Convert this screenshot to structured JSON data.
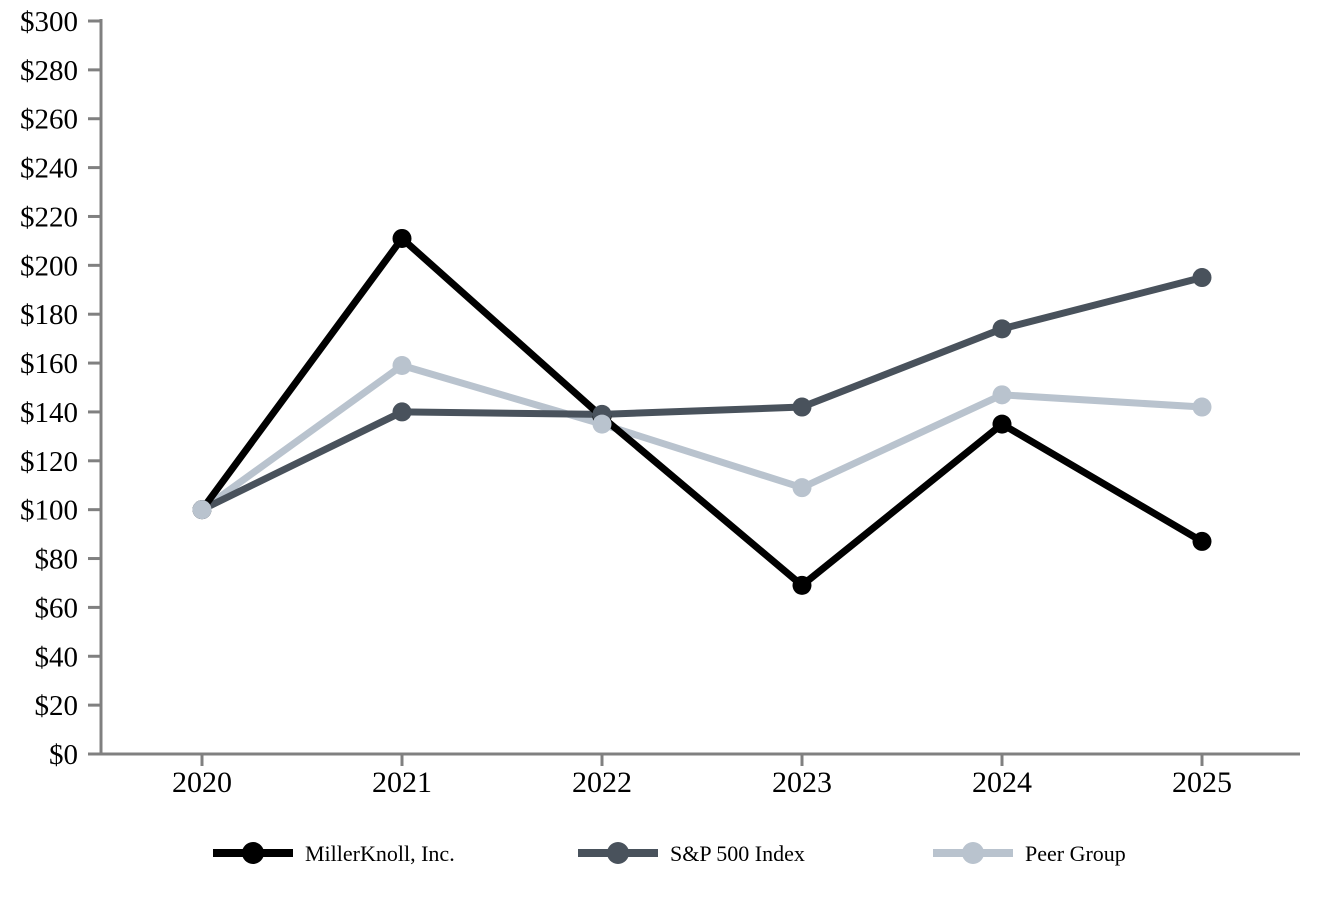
{
  "page": {
    "background_color": "#ffffff"
  },
  "chart_data": {
    "type": "line",
    "title": "",
    "xlabel": "",
    "ylabel": "",
    "categories": [
      "2020",
      "2021",
      "2022",
      "2023",
      "2024",
      "2025"
    ],
    "series": [
      {
        "name": "MillerKnoll, Inc.",
        "color": "#000000",
        "values": [
          100,
          211,
          138,
          69,
          135,
          87
        ]
      },
      {
        "name": "S&P 500 Index",
        "color": "#49525c",
        "values": [
          100,
          140,
          139,
          142,
          174,
          195
        ]
      },
      {
        "name": "Peer Group",
        "color": "#b9c3ce",
        "values": [
          100,
          159,
          135,
          109,
          147,
          142
        ]
      }
    ],
    "ylim": [
      0,
      300
    ],
    "ytick_step": 20,
    "ytick_labels": [
      "$0",
      "$20",
      "$40",
      "$60",
      "$80",
      "$100",
      "$120",
      "$140",
      "$160",
      "$180",
      "$200",
      "$220",
      "$240",
      "$260",
      "$280",
      "$300"
    ],
    "grid": false,
    "marker": "circle",
    "legend_position": "bottom",
    "axis_color": "#808080",
    "text_color": "#000000"
  }
}
